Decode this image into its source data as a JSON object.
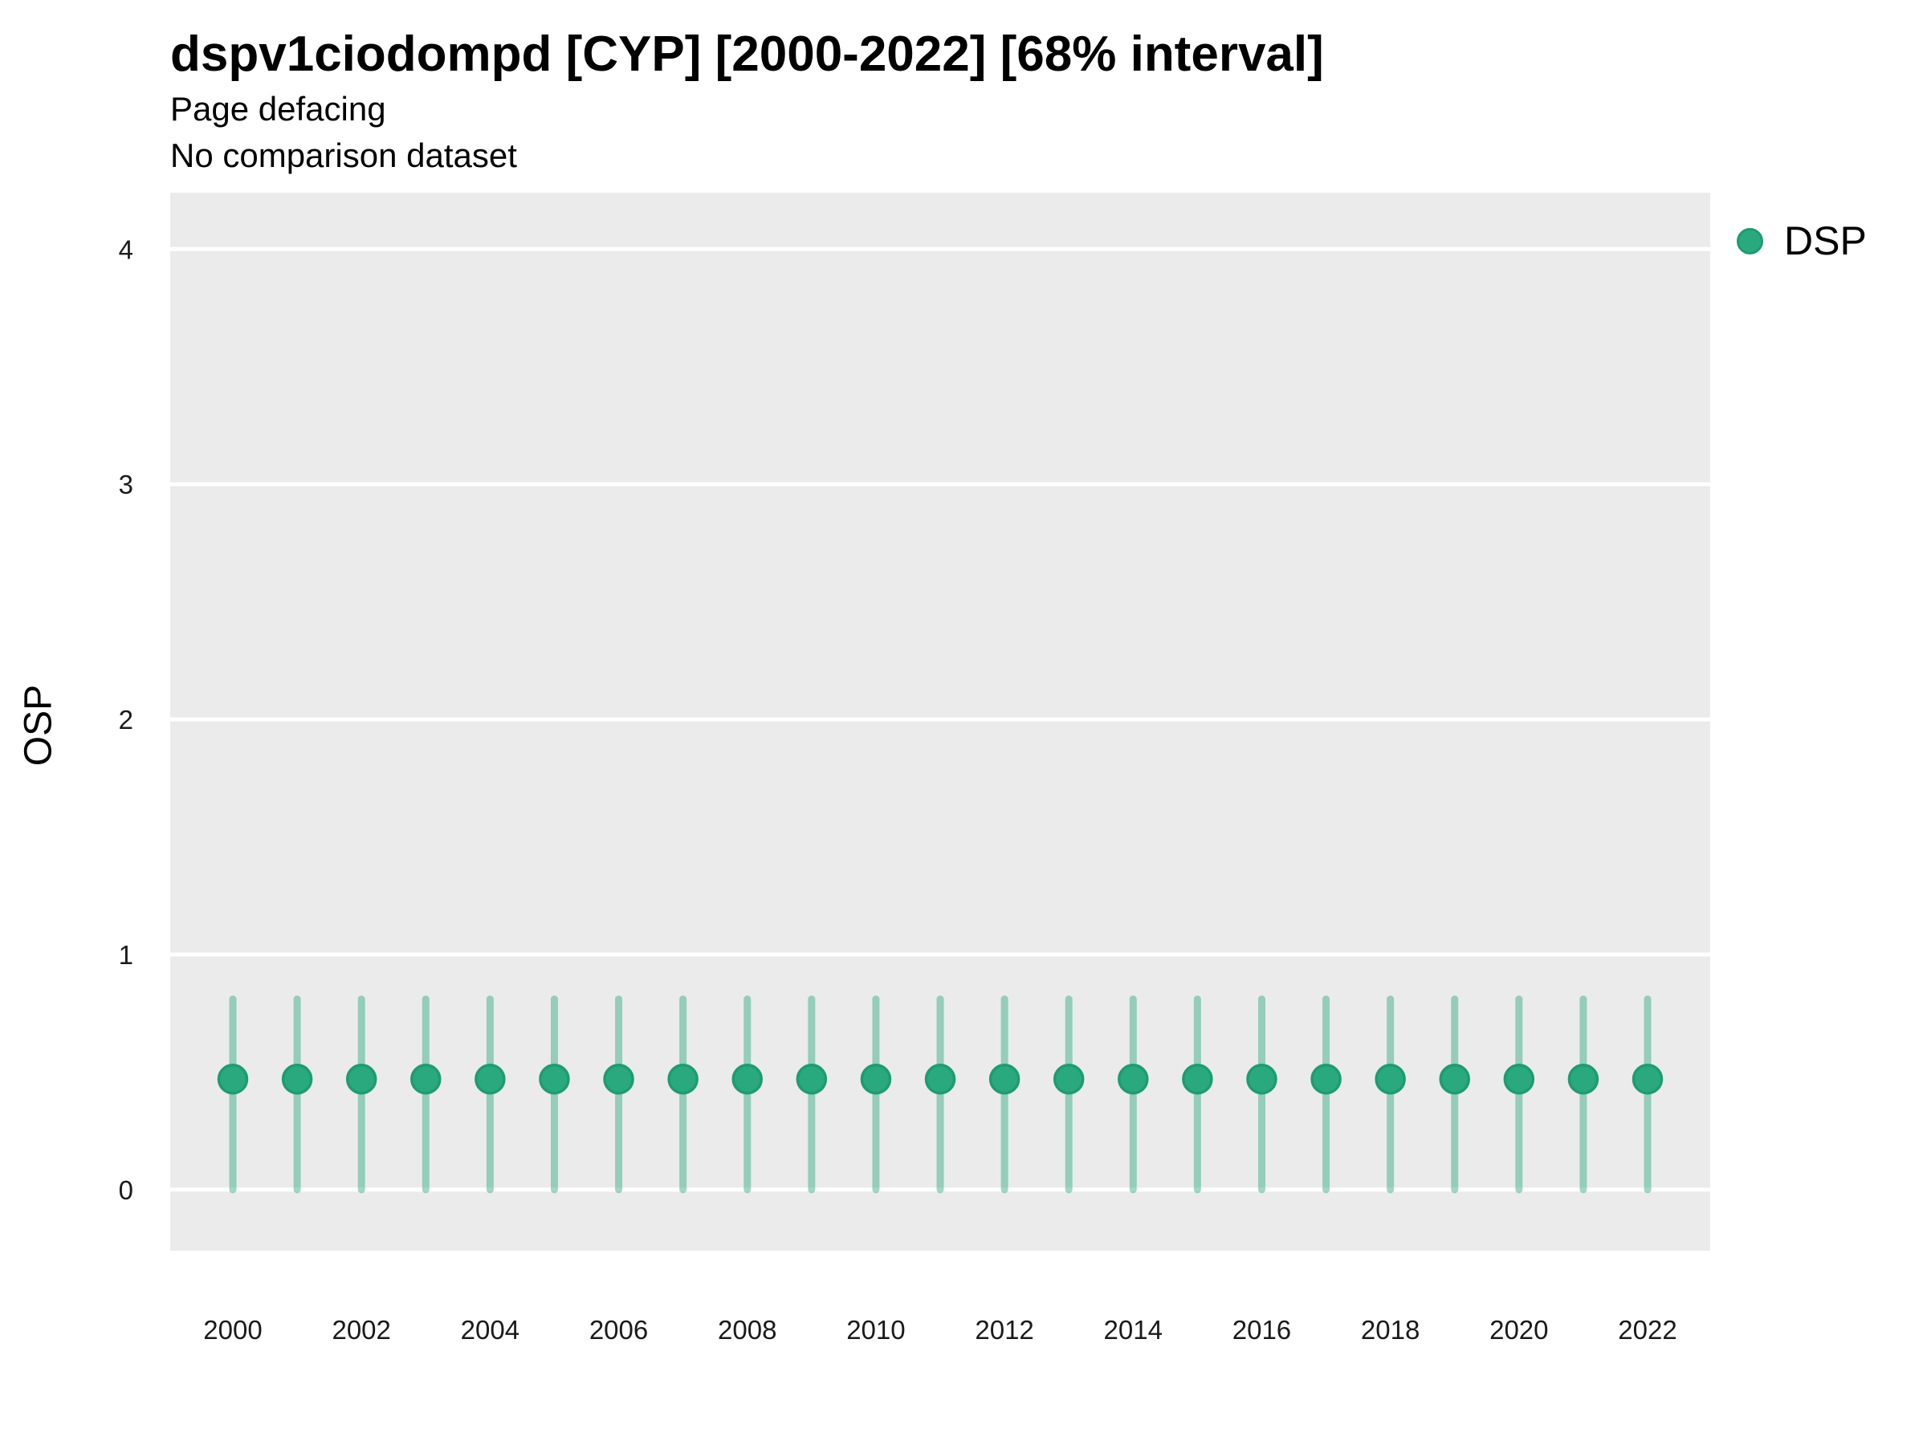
{
  "header": {
    "title": "dspv1ciodompd [CYP] [2000-2022] [68% interval]",
    "subtitle": "Page defacing",
    "note": "No comparison dataset"
  },
  "legend": {
    "items": [
      {
        "label": "DSP",
        "marker": "circle",
        "color": "#2aa87e",
        "stroke": "#1f9b72"
      }
    ],
    "position": "right-top"
  },
  "axes": {
    "ylabel": "OSP",
    "xlabel": ""
  },
  "chart_data": {
    "type": "scatter",
    "title": "dspv1ciodompd [CYP] [2000-2022] [68% interval]",
    "subtitle": "Page defacing",
    "note": "No comparison dataset",
    "xlabel": "",
    "ylabel": "OSP",
    "interval_level": "68%",
    "x": [
      2000,
      2001,
      2002,
      2003,
      2004,
      2005,
      2006,
      2007,
      2008,
      2009,
      2010,
      2011,
      2012,
      2013,
      2014,
      2015,
      2016,
      2017,
      2018,
      2019,
      2020,
      2021,
      2022
    ],
    "xtick_labels": [
      "2000",
      "2002",
      "2004",
      "2006",
      "2008",
      "2010",
      "2012",
      "2014",
      "2016",
      "2018",
      "2020",
      "2022"
    ],
    "yticks": [
      0,
      1,
      2,
      3,
      4
    ],
    "ytick_labels": [
      "0",
      "1",
      "2",
      "3",
      "4"
    ],
    "ylim": [
      -0.26,
      4.24
    ],
    "grid": "horizontal-major-only",
    "legend_position": "right",
    "panel_background": "#ebebeb",
    "gridline_color": "#ffffff",
    "tick_label_color": "#1a1a1a",
    "series": [
      {
        "name": "DSP",
        "point_color": "#2aa87e",
        "point_stroke": "#1f9b72",
        "interval_color": "rgba(42,168,126,0.45)",
        "values": [
          0.47,
          0.47,
          0.47,
          0.47,
          0.47,
          0.47,
          0.47,
          0.47,
          0.47,
          0.47,
          0.47,
          0.47,
          0.47,
          0.47,
          0.47,
          0.47,
          0.47,
          0.47,
          0.47,
          0.47,
          0.47,
          0.47,
          0.47
        ],
        "lower": [
          0,
          0,
          0,
          0,
          0,
          0,
          0,
          0,
          0,
          0,
          0,
          0,
          0,
          0,
          0,
          0,
          0,
          0,
          0,
          0,
          0,
          0,
          0
        ],
        "upper": [
          0.81,
          0.81,
          0.81,
          0.81,
          0.81,
          0.81,
          0.81,
          0.81,
          0.81,
          0.81,
          0.81,
          0.81,
          0.81,
          0.81,
          0.81,
          0.81,
          0.81,
          0.81,
          0.81,
          0.81,
          0.81,
          0.81,
          0.81
        ]
      }
    ]
  }
}
